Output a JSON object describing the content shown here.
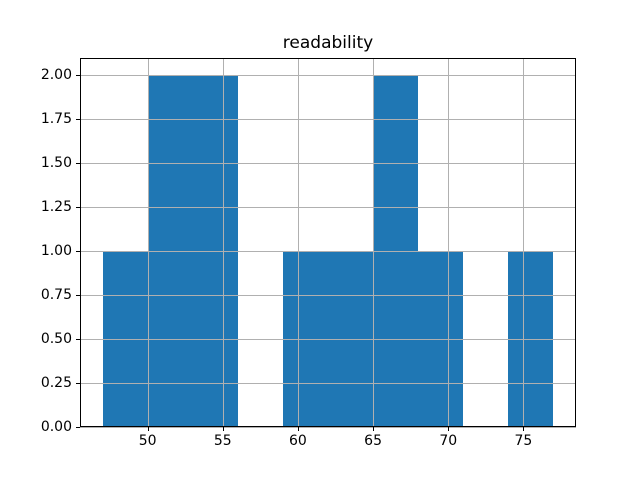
{
  "chart_data": {
    "type": "bar",
    "subtype": "histogram",
    "title": "readability",
    "xlabel": "",
    "ylabel": "",
    "bin_edges": [
      47,
      50,
      53,
      56,
      59,
      62,
      65,
      68,
      71,
      74,
      77
    ],
    "counts": [
      1,
      2,
      2,
      0,
      1,
      1,
      2,
      1,
      0,
      1
    ],
    "xlim": [
      45.5,
      78.5
    ],
    "ylim": [
      0,
      2.1
    ],
    "xticks": [
      50,
      55,
      60,
      65,
      70,
      75
    ],
    "xtick_labels": [
      "50",
      "55",
      "60",
      "65",
      "70",
      "75"
    ],
    "yticks": [
      0,
      0.25,
      0.5,
      0.75,
      1.0,
      1.25,
      1.5,
      1.75,
      2.0
    ],
    "ytick_labels": [
      "0.00",
      "0.25",
      "0.50",
      "0.75",
      "1.00",
      "1.25",
      "1.50",
      "1.75",
      "2.00"
    ],
    "grid": true,
    "grid_above_bars": true,
    "legend": false,
    "colors": {
      "bar": "#1f77b4",
      "grid": "#b0b0b0",
      "spine": "#000000",
      "background": "#ffffff",
      "text": "#000000"
    }
  }
}
